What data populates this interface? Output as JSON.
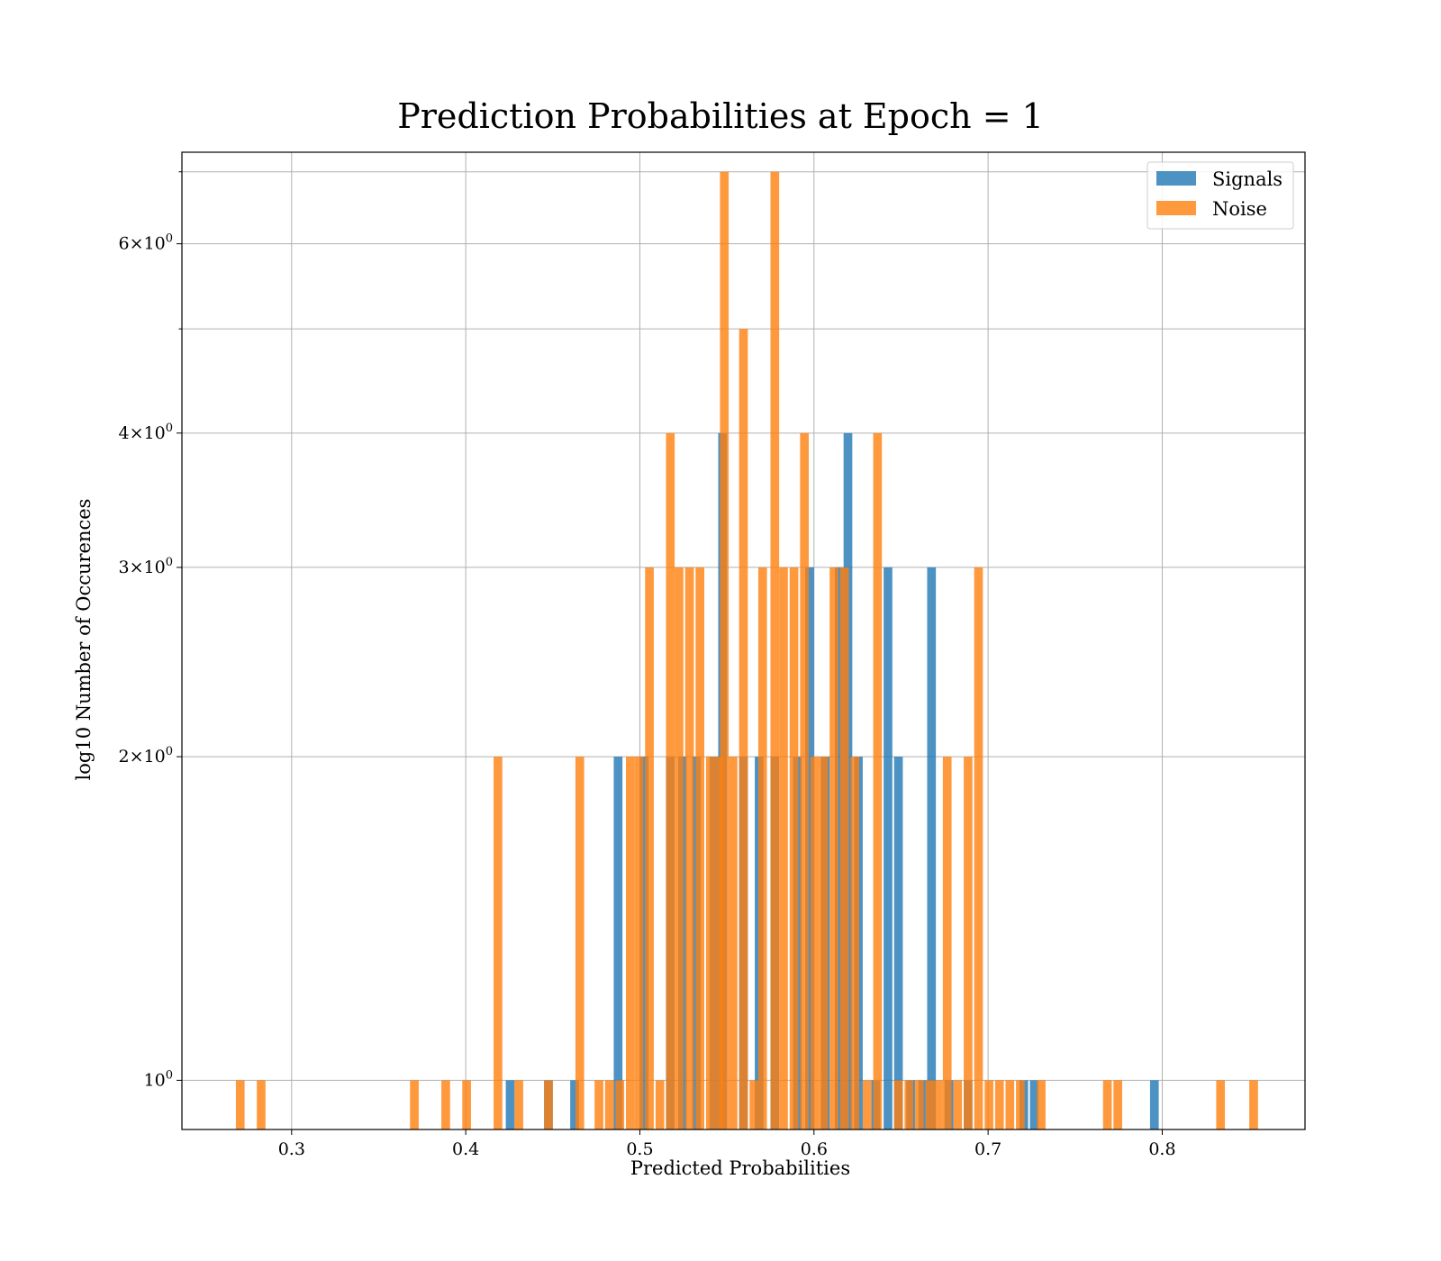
{
  "chart_data": {
    "type": "bar",
    "title": "Prediction Probabilities at Epoch = 1",
    "xlabel": "Predicted Probabilities",
    "ylabel": "log10 Number of Occurences",
    "xlim": [
      0.237,
      0.882
    ],
    "ylim": [
      0.9,
      7.3
    ],
    "yscale": "log",
    "grid": true,
    "legend_position": "top-right",
    "bin_width": 0.005,
    "x_ticks": [
      {
        "value": 0.3,
        "label": "0.3"
      },
      {
        "value": 0.4,
        "label": "0.4"
      },
      {
        "value": 0.5,
        "label": "0.5"
      },
      {
        "value": 0.6,
        "label": "0.6"
      },
      {
        "value": 0.7,
        "label": "0.7"
      },
      {
        "value": 0.8,
        "label": "0.8"
      }
    ],
    "y_ticks": [
      {
        "value": 1,
        "base": "10",
        "exp": "0"
      },
      {
        "value": 2,
        "base": "2×10",
        "exp": "0"
      },
      {
        "value": 3,
        "base": "3×10",
        "exp": "0"
      },
      {
        "value": 4,
        "base": "4×10",
        "exp": "0"
      },
      {
        "value": 6,
        "base": "6×10",
        "exp": "0"
      }
    ],
    "y_minor_ticks": [
      5,
      7
    ],
    "series": [
      {
        "name": "Signals",
        "color": "#1f77b4",
        "bins": [
          [
            0.423,
            1
          ],
          [
            0.445,
            1
          ],
          [
            0.46,
            1
          ],
          [
            0.485,
            2
          ],
          [
            0.5,
            2
          ],
          [
            0.515,
            2
          ],
          [
            0.522,
            2
          ],
          [
            0.53,
            2
          ],
          [
            0.54,
            2
          ],
          [
            0.545,
            4
          ],
          [
            0.557,
            2
          ],
          [
            0.566,
            2
          ],
          [
            0.575,
            2
          ],
          [
            0.588,
            2
          ],
          [
            0.595,
            3
          ],
          [
            0.604,
            2
          ],
          [
            0.612,
            3
          ],
          [
            0.617,
            4
          ],
          [
            0.623,
            2
          ],
          [
            0.633,
            1
          ],
          [
            0.64,
            3
          ],
          [
            0.646,
            2
          ],
          [
            0.653,
            1
          ],
          [
            0.66,
            1
          ],
          [
            0.665,
            3
          ],
          [
            0.675,
            1
          ],
          [
            0.686,
            1
          ],
          [
            0.718,
            1
          ],
          [
            0.724,
            1
          ],
          [
            0.793,
            1
          ]
        ]
      },
      {
        "name": "Noise",
        "color": "#ff7f0e",
        "bins": [
          [
            0.268,
            1
          ],
          [
            0.28,
            1
          ],
          [
            0.368,
            1
          ],
          [
            0.386,
            1
          ],
          [
            0.398,
            1
          ],
          [
            0.416,
            2
          ],
          [
            0.428,
            1
          ],
          [
            0.445,
            1
          ],
          [
            0.463,
            2
          ],
          [
            0.474,
            1
          ],
          [
            0.48,
            1
          ],
          [
            0.486,
            1
          ],
          [
            0.492,
            2
          ],
          [
            0.497,
            2
          ],
          [
            0.503,
            3
          ],
          [
            0.509,
            1
          ],
          [
            0.515,
            4
          ],
          [
            0.52,
            3
          ],
          [
            0.526,
            3
          ],
          [
            0.532,
            3
          ],
          [
            0.538,
            2
          ],
          [
            0.543,
            2
          ],
          [
            0.546,
            7
          ],
          [
            0.551,
            2
          ],
          [
            0.557,
            5
          ],
          [
            0.563,
            1
          ],
          [
            0.568,
            3
          ],
          [
            0.575,
            7
          ],
          [
            0.58,
            3
          ],
          [
            0.586,
            3
          ],
          [
            0.592,
            4
          ],
          [
            0.598,
            2
          ],
          [
            0.603,
            2
          ],
          [
            0.609,
            3
          ],
          [
            0.615,
            3
          ],
          [
            0.621,
            2
          ],
          [
            0.628,
            1
          ],
          [
            0.634,
            4
          ],
          [
            0.646,
            1
          ],
          [
            0.652,
            1
          ],
          [
            0.658,
            1
          ],
          [
            0.664,
            1
          ],
          [
            0.669,
            1
          ],
          [
            0.674,
            2
          ],
          [
            0.68,
            1
          ],
          [
            0.686,
            2
          ],
          [
            0.692,
            3
          ],
          [
            0.698,
            1
          ],
          [
            0.704,
            1
          ],
          [
            0.71,
            1
          ],
          [
            0.716,
            1
          ],
          [
            0.728,
            1
          ],
          [
            0.766,
            1
          ],
          [
            0.772,
            1
          ],
          [
            0.831,
            1
          ],
          [
            0.85,
            1
          ]
        ]
      }
    ]
  }
}
